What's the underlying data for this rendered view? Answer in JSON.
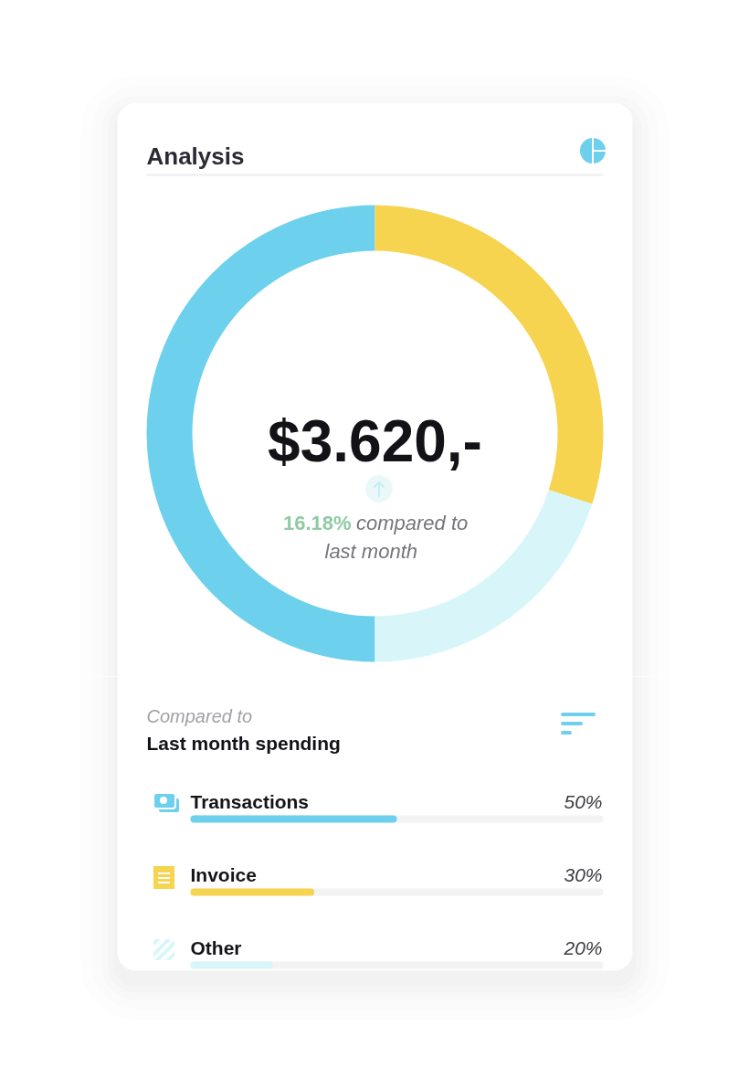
{
  "chart_data": [
    {
      "type": "donut",
      "title": "Analysis",
      "categories": [
        null,
        null,
        null
      ],
      "values": [
        50,
        30,
        20
      ],
      "colors": [
        "#6dd0ec",
        "#f6d450",
        "#d8f6fa"
      ],
      "annotations": [
        "$3.620,-",
        "16.18% compared to last month"
      ]
    },
    {
      "type": "bar",
      "orientation": "horizontal",
      "subtitle": "Compared to",
      "title": "Last month spending",
      "categories": [
        "Transactions",
        "Invoice",
        "Other"
      ],
      "values": [
        50,
        30,
        20
      ],
      "colors": [
        "#6dd0ec",
        "#f6d450",
        "#d8f6fa"
      ],
      "value_labels": [
        "50%",
        "30%",
        "20%"
      ],
      "xlim": [
        0,
        100
      ]
    }
  ]
}
